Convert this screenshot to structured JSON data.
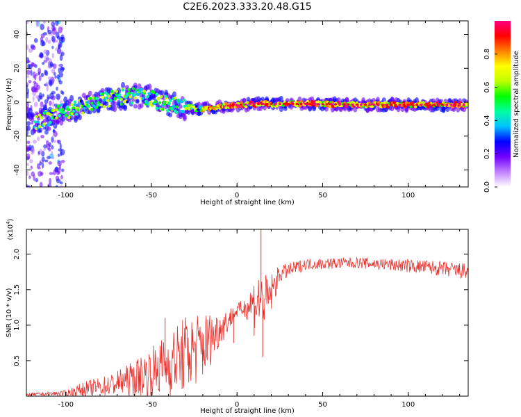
{
  "title": "C2E6.2023.333.20.48.G15",
  "chart_data": [
    {
      "type": "heatmap",
      "name": "spectrogram",
      "xlabel": "Height of straight line (km)",
      "ylabel": "Frequency (Hz)",
      "xlim": [
        -123,
        135
      ],
      "ylim": [
        -50,
        48
      ],
      "xticks": [
        -100,
        -50,
        0,
        50,
        100
      ],
      "yticks": [
        -40,
        -20,
        0,
        20,
        40
      ],
      "colorbar": {
        "label": "Normalized spectral amplitude",
        "range": [
          0.0,
          1.0
        ],
        "ticks": [
          0.0,
          0.2,
          0.4,
          0.6,
          0.8
        ],
        "colors": [
          "#ffffff",
          "#c080ff",
          "#7000ff",
          "#0000ff",
          "#00c0ff",
          "#00ffa0",
          "#00ff00",
          "#c0ff00",
          "#ffff00",
          "#ff8000",
          "#ff0000",
          "#ff0080"
        ]
      },
      "ridge": [
        {
          "x": -115,
          "y": -11
        },
        {
          "x": -100,
          "y": -5
        },
        {
          "x": -85,
          "y": -1
        },
        {
          "x": -70,
          "y": 3
        },
        {
          "x": -55,
          "y": 4
        },
        {
          "x": -45,
          "y": 0
        },
        {
          "x": -30,
          "y": -3
        },
        {
          "x": -20,
          "y": -4
        },
        {
          "x": -5,
          "y": -2
        },
        {
          "x": 10,
          "y": -1
        },
        {
          "x": 40,
          "y": -1
        },
        {
          "x": 80,
          "y": -1.5
        },
        {
          "x": 135,
          "y": -1.5
        }
      ]
    },
    {
      "type": "line",
      "name": "snr",
      "xlabel": "Height of straight line (km)",
      "ylabel": "SNR (10 * v/v)",
      "yscale_label": "(x10",
      "yscale_exp": "4",
      "yscale_close": ")",
      "xlim": [
        -123,
        135
      ],
      "ylim": [
        0,
        2.35
      ],
      "xticks": [
        -100,
        -50,
        0,
        50,
        100
      ],
      "yticks": [
        0.5,
        1.0,
        1.5,
        2.0
      ],
      "ytick_labels": [
        "0.5",
        "1.0",
        "1.5",
        "2.0"
      ],
      "color": "#e8302c",
      "envelope": [
        {
          "x": -123,
          "mean": 0.02,
          "amp": 0.02
        },
        {
          "x": -100,
          "mean": 0.04,
          "amp": 0.04
        },
        {
          "x": -90,
          "mean": 0.1,
          "amp": 0.1
        },
        {
          "x": -75,
          "mean": 0.15,
          "amp": 0.15
        },
        {
          "x": -60,
          "mean": 0.25,
          "amp": 0.25
        },
        {
          "x": -50,
          "mean": 0.35,
          "amp": 0.35
        },
        {
          "x": -40,
          "mean": 0.45,
          "amp": 0.45
        },
        {
          "x": -30,
          "mean": 0.6,
          "amp": 0.55
        },
        {
          "x": -20,
          "mean": 0.7,
          "amp": 0.5
        },
        {
          "x": -10,
          "mean": 0.95,
          "amp": 0.25
        },
        {
          "x": 0,
          "mean": 1.2,
          "amp": 0.1
        },
        {
          "x": 5,
          "mean": 1.25,
          "amp": 0.15
        },
        {
          "x": 12,
          "mean": 1.35,
          "amp": 0.45
        },
        {
          "x": 18,
          "mean": 1.35,
          "amp": 0.35
        },
        {
          "x": 25,
          "mean": 1.72,
          "amp": 0.12
        },
        {
          "x": 40,
          "mean": 1.86,
          "amp": 0.08
        },
        {
          "x": 70,
          "mean": 1.88,
          "amp": 0.08
        },
        {
          "x": 110,
          "mean": 1.82,
          "amp": 0.1
        },
        {
          "x": 135,
          "mean": 1.75,
          "amp": 0.12
        }
      ],
      "spikes": [
        {
          "x": 14,
          "y": 2.35
        },
        {
          "x": 15,
          "y": 0.55
        },
        {
          "x": 10,
          "y": 0.85
        },
        {
          "x": -2,
          "y": 0.75
        },
        {
          "x": -42,
          "y": 1.1
        }
      ]
    }
  ]
}
